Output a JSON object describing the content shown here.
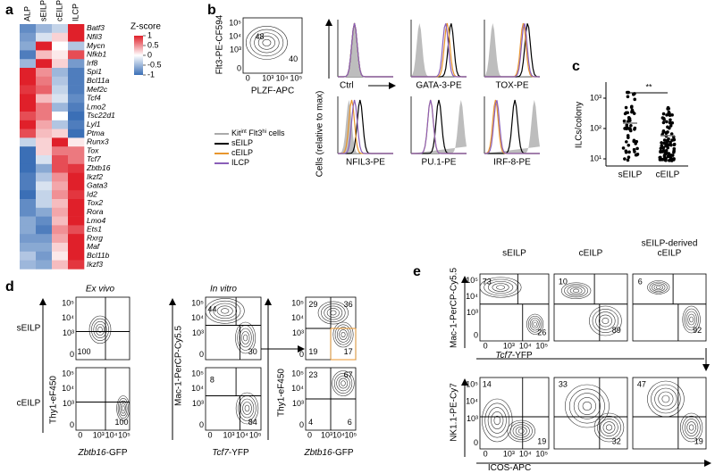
{
  "panel_labels": [
    "a",
    "b",
    "c",
    "d",
    "e"
  ],
  "flow_ticks": [
    "0",
    "10³",
    "10⁴",
    "10⁵"
  ],
  "heatmap": {
    "columns": [
      "ALP",
      "sEILP",
      "cEILP",
      "ILCP"
    ],
    "rows": [
      "Batf3",
      "Nfil3",
      "Mycn",
      "Nfkb1",
      "Irf8",
      "Spi1",
      "Bcl11a",
      "Mef2c",
      "Tcf4",
      "Lmo2",
      "Tsc22d1",
      "Lyl1",
      "Ptma",
      "Runx3",
      "Tox",
      "Tcf7",
      "Zbtb16",
      "Ikzf2",
      "Gata3",
      "Id2",
      "Tox2",
      "Rora",
      "Lmo4",
      "Ets1",
      "Rxrg",
      "Maf",
      "Bcl11b",
      "Ikzf3"
    ],
    "values": [
      [
        -0.8,
        -0.5,
        -0.3,
        1
      ],
      [
        -0.7,
        -0.2,
        0.2,
        1
      ],
      [
        -0.6,
        1,
        0,
        -0.4
      ],
      [
        -0.9,
        0.3,
        0.1,
        0.8
      ],
      [
        -0.5,
        1,
        0.2,
        -0.7
      ],
      [
        1,
        0.5,
        -0.5,
        -0.9
      ],
      [
        1,
        0.6,
        -0.4,
        -0.9
      ],
      [
        0.9,
        0.7,
        -0.3,
        -0.9
      ],
      [
        1,
        0.3,
        -0.2,
        -0.8
      ],
      [
        1,
        0.6,
        -0.5,
        -0.9
      ],
      [
        0.8,
        0.6,
        0,
        -1
      ],
      [
        1,
        0.4,
        -0.4,
        -0.9
      ],
      [
        0.8,
        0.3,
        0.2,
        -1
      ],
      [
        -0.3,
        0.2,
        1,
        0.1
      ],
      [
        -1,
        0.2,
        0.6,
        0.6
      ],
      [
        -1,
        -0.2,
        0.8,
        0.6
      ],
      [
        -1,
        -0.6,
        0.8,
        0.9
      ],
      [
        -0.9,
        -0.4,
        0.5,
        1
      ],
      [
        -0.9,
        -0.2,
        0.4,
        1
      ],
      [
        -1,
        -0.3,
        0.5,
        0.9
      ],
      [
        -0.8,
        -0.3,
        0.3,
        1
      ],
      [
        -0.8,
        -0.6,
        0.4,
        1
      ],
      [
        -0.6,
        -0.8,
        0.3,
        1
      ],
      [
        -0.6,
        -0.9,
        0.5,
        0.8
      ],
      [
        -0.7,
        -0.7,
        0.4,
        1
      ],
      [
        -0.6,
        -0.6,
        0.2,
        1
      ],
      [
        -0.4,
        -0.7,
        0.1,
        1
      ],
      [
        -0.5,
        -0.6,
        0.3,
        0.9
      ]
    ],
    "legend_title": "Z-score",
    "legend_ticks": [
      1,
      0.5,
      0,
      -0.5,
      -1
    ]
  },
  "panel_b": {
    "gate_plot": {
      "y_label": "Flt3-PE-CF594",
      "x_label": "PLZF-APC",
      "numbers": [
        48,
        40
      ]
    },
    "legend": [
      {
        "parts": [
          "Kit",
          "int",
          " Flt3",
          "hi",
          " cells"
        ],
        "color": "#aaaaaa"
      },
      {
        "parts": [
          "sEILP"
        ],
        "color": "#000000"
      },
      {
        "parts": [
          "cEILP"
        ],
        "color": "#e8962e"
      },
      {
        "parts": [
          "ILCP"
        ],
        "color": "#8a5fb8"
      }
    ],
    "histogram_y_label": "Cells (relative to max)",
    "histograms": [
      "Ctrl",
      "GATA-3-PE",
      "TOX-PE",
      "NFIL3-PE",
      "PU.1-PE",
      "IRF-8-PE"
    ]
  },
  "panel_c": {
    "y_label": "ILCs/colony",
    "yticks": [
      "10¹",
      "10²",
      "10³"
    ],
    "categories": [
      "sEILP",
      "cEILP"
    ],
    "significance": "**"
  },
  "panel_d": {
    "col_titles": [
      "Ex vivo",
      "In vitro"
    ],
    "row_labels": [
      "sEILP",
      "cEILP"
    ],
    "y_labels": [
      "Thy1-eF450",
      "Mac-1-PerCP-Cy5.5",
      "Thy1-eF450"
    ],
    "x_labels": [
      [
        "Zbtb16",
        "-GFP"
      ],
      [
        "Tcf7",
        "-YFP"
      ],
      [
        "Zbtb16",
        "-GFP"
      ]
    ],
    "plots": [
      [
        [
          100
        ],
        [
          44,
          30
        ],
        [
          29,
          36,
          19,
          17
        ]
      ],
      [
        [
          100
        ],
        [
          8,
          84
        ],
        [
          23,
          67,
          4,
          6
        ]
      ]
    ]
  },
  "panel_e": {
    "col_titles": [
      [
        "sEILP"
      ],
      [
        "cEILP"
      ],
      [
        "sEILP-derived",
        "cEILP"
      ]
    ],
    "y_labels": [
      "Mac-1-PerCP-Cy5.5",
      "NK1.1-PE-Cy7"
    ],
    "x_labels": [
      [
        "Tcf7",
        "-YFP"
      ],
      [
        "ICOS-APC"
      ]
    ],
    "plots": [
      [
        [
          73,
          26
        ],
        [
          10,
          89
        ],
        [
          6,
          92
        ]
      ],
      [
        [
          14,
          19
        ],
        [
          33,
          32
        ],
        [
          47,
          19
        ]
      ]
    ]
  }
}
